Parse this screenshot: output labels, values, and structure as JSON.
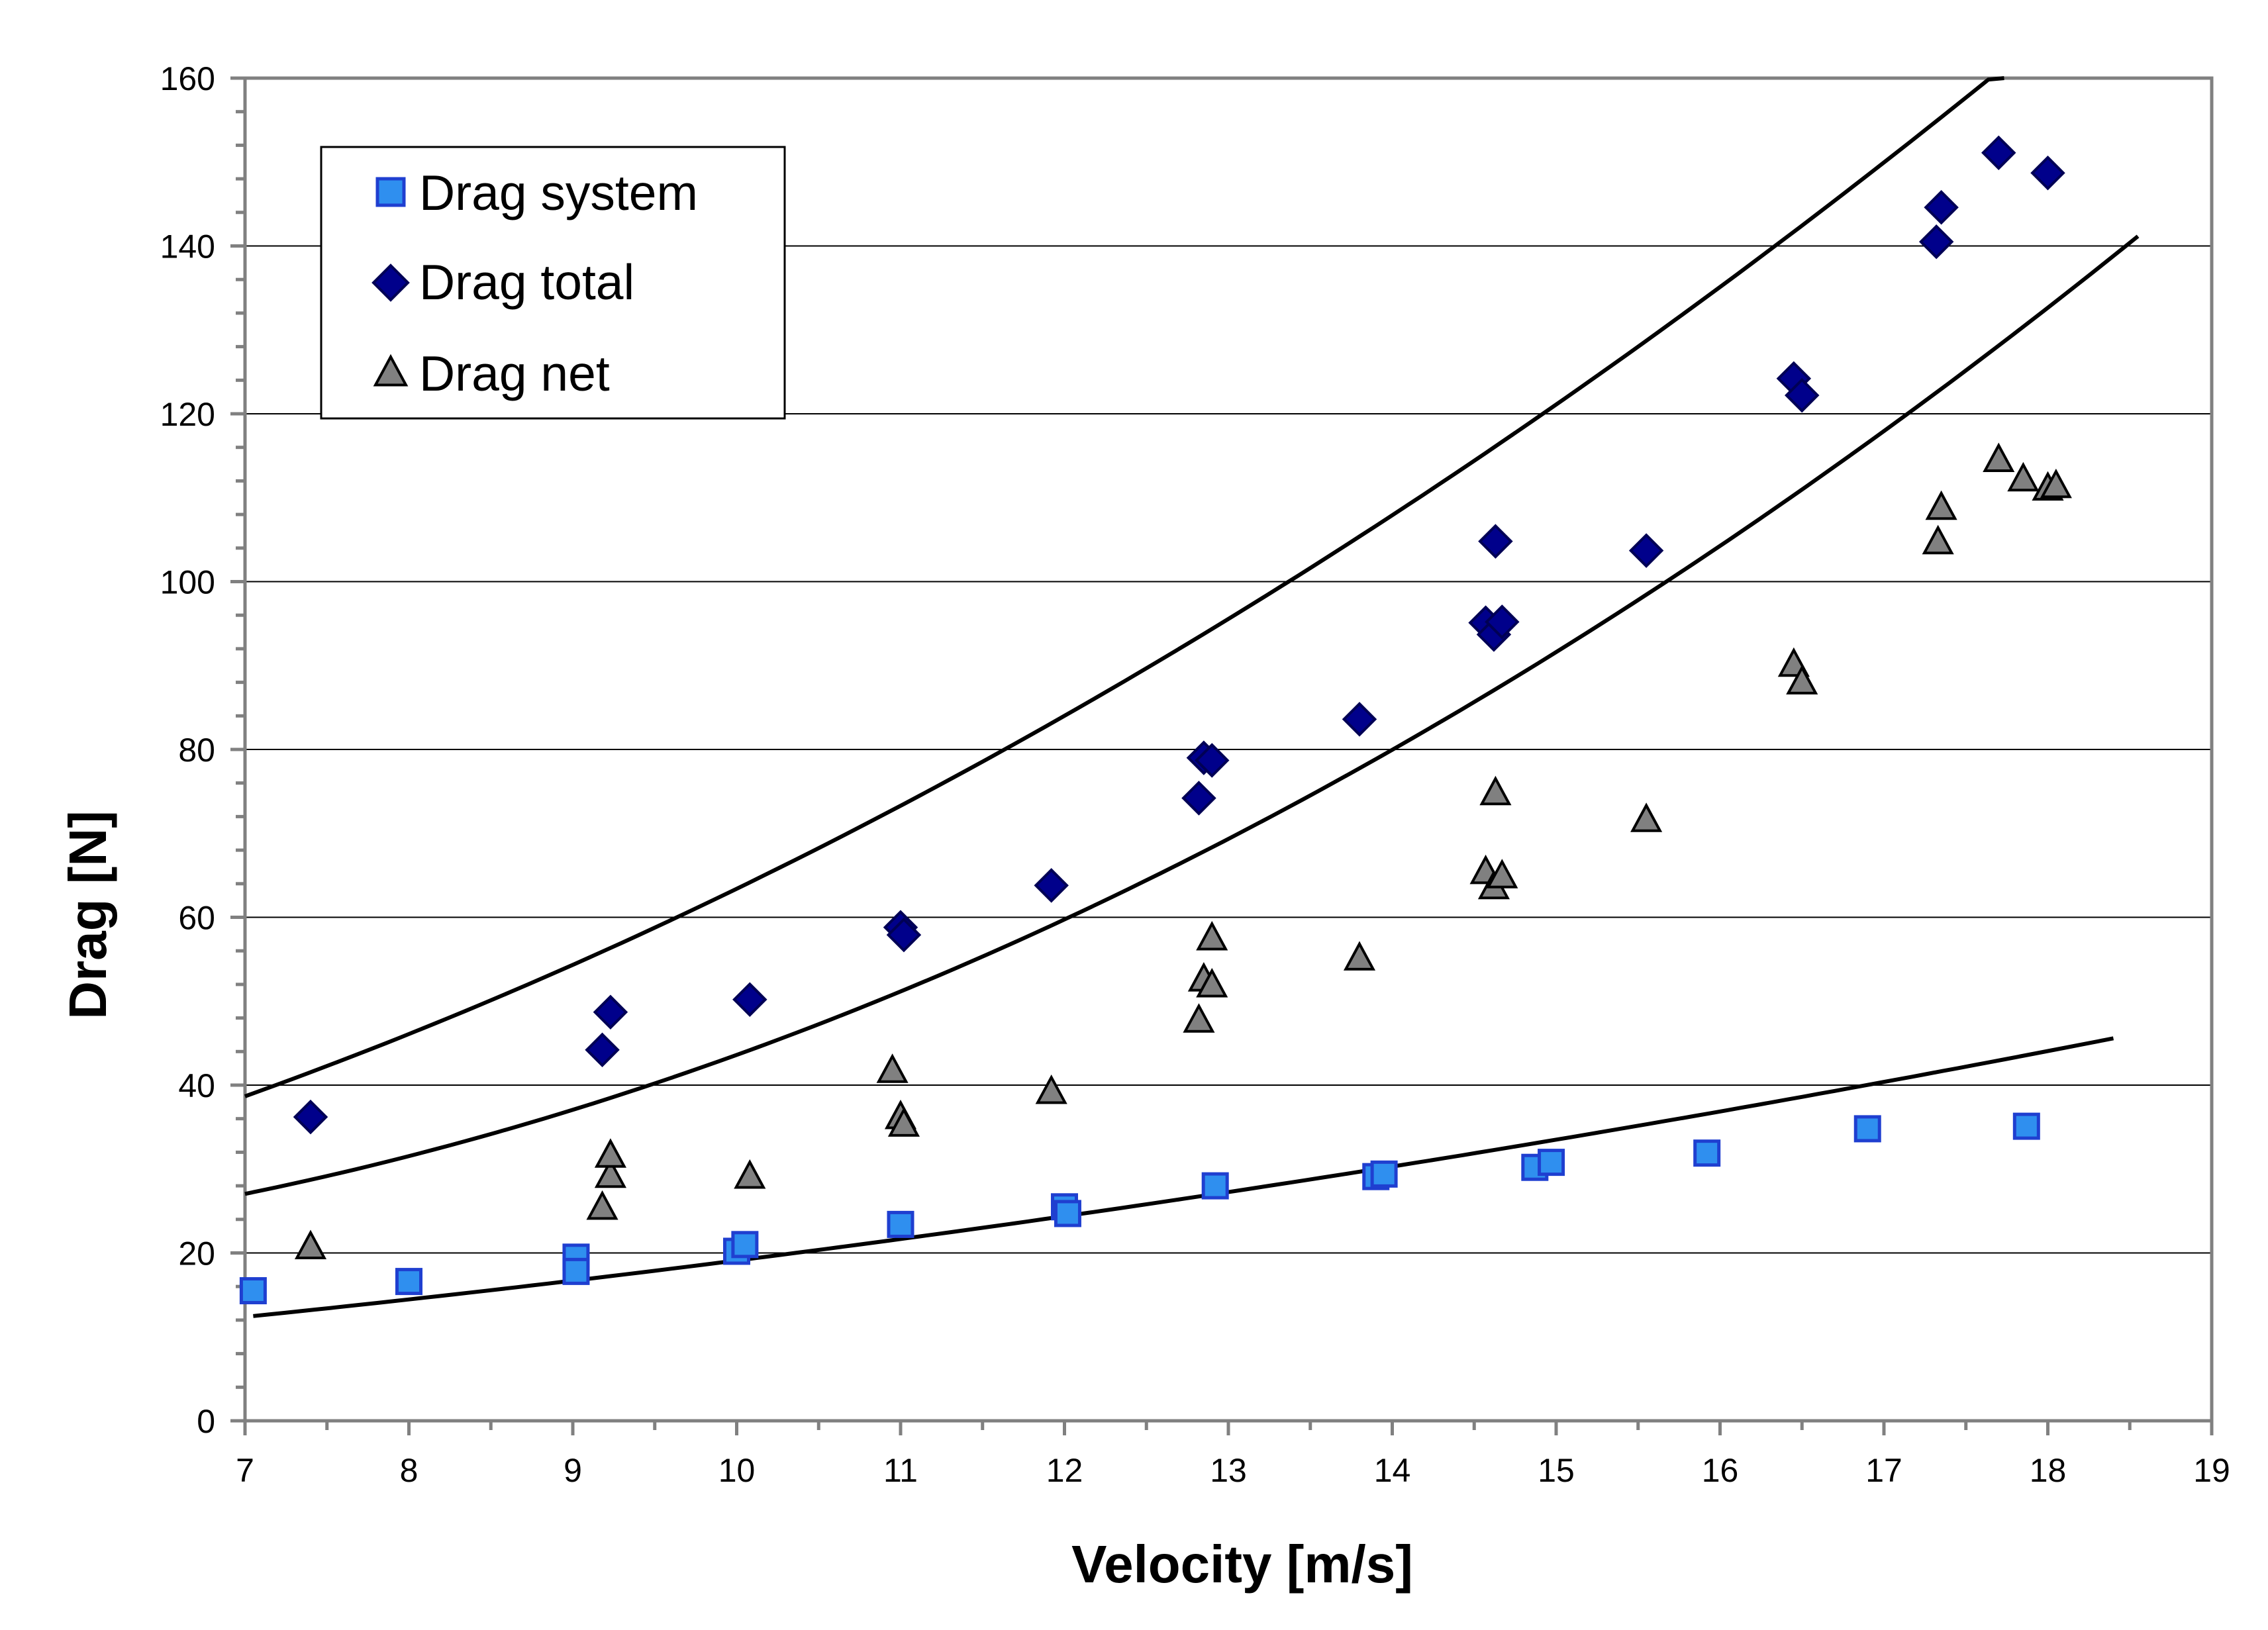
{
  "chart_data": {
    "type": "scatter",
    "title": "",
    "xlabel": "Velocity [m/s]",
    "ylabel": "Drag [N]",
    "xlim": [
      7,
      19
    ],
    "ylim": [
      0,
      160
    ],
    "x_ticks": [
      7,
      8,
      9,
      10,
      11,
      12,
      13,
      14,
      15,
      16,
      17,
      18,
      19
    ],
    "y_ticks": [
      0,
      20,
      40,
      60,
      80,
      100,
      120,
      140,
      160
    ],
    "grid": "horizontal major gridlines",
    "legend_position": "top-left",
    "series": [
      {
        "name": "Drag system",
        "marker": "square",
        "color": "#2F8FEF",
        "stroke": "#1F3FD0",
        "points": [
          [
            7.05,
            15.5
          ],
          [
            8.0,
            16.6
          ],
          [
            9.02,
            19.5
          ],
          [
            9.02,
            17.8
          ],
          [
            10.0,
            20.2
          ],
          [
            10.05,
            21.0
          ],
          [
            11.0,
            23.4
          ],
          [
            12.0,
            25.5
          ],
          [
            12.02,
            24.7
          ],
          [
            12.92,
            28.0
          ],
          [
            13.9,
            29.1
          ],
          [
            13.95,
            29.4
          ],
          [
            14.87,
            30.2
          ],
          [
            14.97,
            30.8
          ],
          [
            15.92,
            31.9
          ],
          [
            16.9,
            34.8
          ],
          [
            17.87,
            35.1
          ]
        ]
      },
      {
        "name": "Drag total",
        "marker": "diamond",
        "color": "#00008B",
        "stroke": "#000055",
        "points": [
          [
            7.4,
            36.2
          ],
          [
            9.18,
            44.2
          ],
          [
            9.23,
            48.7
          ],
          [
            10.08,
            50.2
          ],
          [
            11.0,
            58.8
          ],
          [
            11.02,
            57.9
          ],
          [
            11.92,
            63.8
          ],
          [
            12.82,
            74.2
          ],
          [
            12.85,
            79.0
          ],
          [
            12.9,
            78.7
          ],
          [
            13.8,
            83.6
          ],
          [
            14.57,
            95.1
          ],
          [
            14.62,
            93.7
          ],
          [
            14.67,
            95.2
          ],
          [
            14.63,
            104.8
          ],
          [
            15.55,
            103.7
          ],
          [
            16.45,
            124.2
          ],
          [
            16.5,
            122.2
          ],
          [
            17.32,
            140.5
          ],
          [
            17.35,
            144.6
          ],
          [
            17.7,
            151.1
          ],
          [
            18.0,
            148.7
          ]
        ]
      },
      {
        "name": "Drag net",
        "marker": "triangle",
        "color": "#808080",
        "stroke": "#000000",
        "points": [
          [
            7.4,
            20.8
          ],
          [
            9.18,
            25.5
          ],
          [
            9.23,
            29.3
          ],
          [
            9.23,
            31.7
          ],
          [
            10.08,
            29.2
          ],
          [
            10.95,
            41.8
          ],
          [
            11.0,
            36.3
          ],
          [
            11.02,
            35.4
          ],
          [
            11.92,
            39.3
          ],
          [
            12.82,
            47.8
          ],
          [
            12.85,
            52.7
          ],
          [
            12.9,
            52.0
          ],
          [
            12.9,
            57.6
          ],
          [
            13.8,
            55.2
          ],
          [
            14.57,
            65.5
          ],
          [
            14.62,
            63.7
          ],
          [
            14.67,
            65.0
          ],
          [
            14.63,
            74.9
          ],
          [
            15.55,
            71.7
          ],
          [
            16.45,
            90.2
          ],
          [
            16.5,
            88.1
          ],
          [
            17.33,
            104.8
          ],
          [
            17.35,
            108.9
          ],
          [
            17.7,
            114.6
          ],
          [
            17.85,
            112.3
          ],
          [
            18.0,
            111.2
          ],
          [
            18.05,
            111.5
          ]
        ]
      }
    ],
    "trendlines": [
      {
        "series": "Drag system",
        "type": "polynomial",
        "coeffs": [
          2.3,
          0.88,
          0.08
        ],
        "x_range": [
          7.05,
          18.4
        ]
      },
      {
        "series": "Drag total",
        "type": "polynomial",
        "coeffs": [
          9.8,
          1.24,
          0.412
        ],
        "x_range": [
          7.0,
          18.5
        ]
      },
      {
        "series": "Drag net",
        "type": "polynomial",
        "coeffs": [
          24.1,
          -3.15,
          0.51
        ],
        "x_range": [
          7.0,
          18.55
        ]
      }
    ]
  }
}
